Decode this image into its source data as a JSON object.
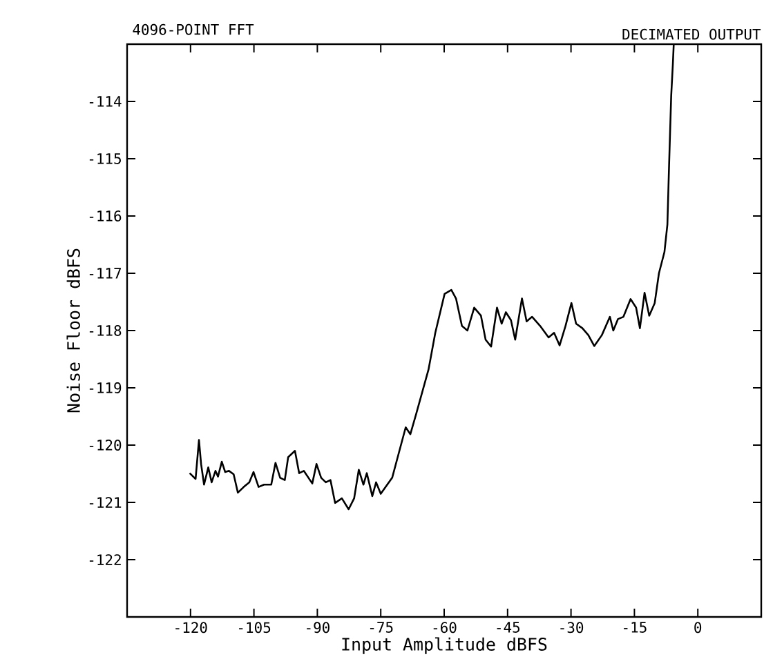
{
  "chart_data": {
    "type": "line",
    "title": "4096-POINT FFT",
    "subtitle": "DECIMATED OUTPUT",
    "xlabel": "Input Amplitude dBFS",
    "ylabel": "Noise Floor dBFS",
    "xlim": [
      -135,
      15
    ],
    "xticks": [
      -120,
      -105,
      -90,
      -75,
      -60,
      -45,
      -30,
      -15,
      0
    ],
    "ylim": [
      -123,
      -113
    ],
    "yticks": [
      -122,
      -121,
      -120,
      -119,
      -118,
      -117,
      -116,
      -115,
      -114
    ],
    "grid": false,
    "marker": "none",
    "line_style": "solid",
    "series": [
      {
        "color": "#000000",
        "x": [
          -120.2,
          -118.8,
          -118.0,
          -117.5,
          -116.8,
          -115.8,
          -115.0,
          -114.1,
          -113.5,
          -112.6,
          -111.8,
          -110.9,
          -109.8,
          -108.8,
          -107.4,
          -106.1,
          -105.1,
          -103.9,
          -102.6,
          -100.9,
          -99.9,
          -98.8,
          -97.7,
          -96.9,
          -95.3,
          -94.3,
          -93.2,
          -91.2,
          -90.2,
          -89.1,
          -88.0,
          -86.9,
          -85.8,
          -84.2,
          -82.6,
          -81.3,
          -80.2,
          -79.1,
          -78.3,
          -77.0,
          -76.1,
          -75.0,
          -72.3,
          -70.7,
          -69.1,
          -68.0,
          -66.6,
          -63.7,
          -62.1,
          -59.9,
          -58.3,
          -57.2,
          -55.8,
          -54.5,
          -52.9,
          -51.3,
          -50.2,
          -48.9,
          -47.5,
          -46.4,
          -45.4,
          -44.2,
          -43.2,
          -41.6,
          -40.5,
          -39.2,
          -37.3,
          -35.3,
          -34.0,
          -32.7,
          -31.3,
          -29.9,
          -28.8,
          -27.3,
          -25.9,
          -24.5,
          -22.7,
          -20.8,
          -20.0,
          -18.9,
          -17.6,
          -15.9,
          -14.6,
          -13.7,
          -12.6,
          -11.5,
          -10.2,
          -9.2,
          -7.9,
          -7.2,
          -6.8,
          -6.3,
          -5.9,
          -5.7
        ],
        "values": [
          -120.49,
          -120.59,
          -119.91,
          -120.33,
          -120.69,
          -120.39,
          -120.65,
          -120.45,
          -120.55,
          -120.29,
          -120.47,
          -120.45,
          -120.51,
          -120.83,
          -120.73,
          -120.65,
          -120.47,
          -120.73,
          -120.69,
          -120.69,
          -120.31,
          -120.57,
          -120.61,
          -120.21,
          -120.1,
          -120.49,
          -120.45,
          -120.67,
          -120.33,
          -120.57,
          -120.65,
          -120.61,
          -121.01,
          -120.93,
          -121.12,
          -120.93,
          -120.43,
          -120.69,
          -120.49,
          -120.89,
          -120.65,
          -120.85,
          -120.57,
          -120.13,
          -119.69,
          -119.81,
          -119.45,
          -118.68,
          -118.04,
          -117.36,
          -117.29,
          -117.44,
          -117.92,
          -118.0,
          -117.6,
          -117.74,
          -118.16,
          -118.28,
          -117.6,
          -117.88,
          -117.68,
          -117.82,
          -118.16,
          -117.44,
          -117.84,
          -117.76,
          -117.92,
          -118.12,
          -118.04,
          -118.26,
          -117.92,
          -117.52,
          -117.88,
          -117.96,
          -118.08,
          -118.27,
          -118.08,
          -117.76,
          -118.0,
          -117.8,
          -117.76,
          -117.45,
          -117.6,
          -117.96,
          -117.34,
          -117.74,
          -117.52,
          -117.0,
          -116.63,
          -116.15,
          -115.11,
          -113.9,
          -113.34,
          -113.0
        ]
      }
    ]
  }
}
